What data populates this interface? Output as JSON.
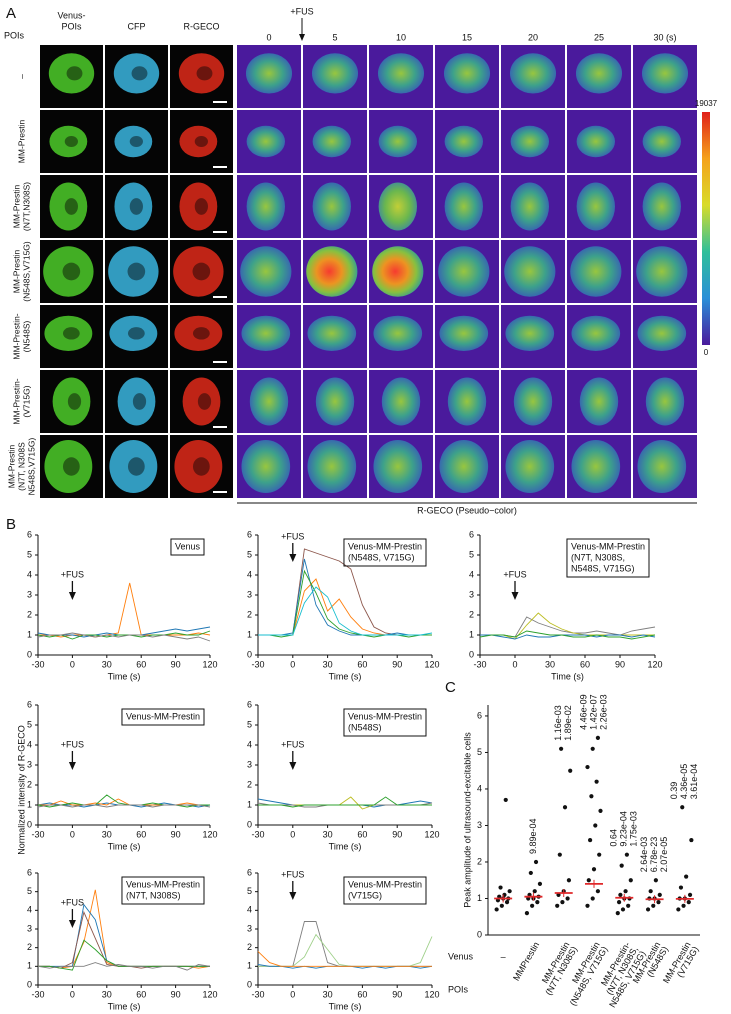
{
  "panel_a": {
    "label": "A",
    "poi_header": "POIs",
    "fus": "+FUS",
    "columns": [
      [
        "Venus-",
        "POIs"
      ],
      [
        "CFP"
      ],
      [
        "R-GECO"
      ],
      [
        "0"
      ],
      [
        "5"
      ],
      [
        "10"
      ],
      [
        "15"
      ],
      [
        "20"
      ],
      [
        "25"
      ],
      [
        "30 (s)"
      ]
    ],
    "rows": [
      [
        "–"
      ],
      [
        "MM-Prestin"
      ],
      [
        "MM-Prestin",
        "(N7T,N308S)"
      ],
      [
        "MM-Prestin",
        "(N548S,V715G)"
      ],
      [
        "MM-Prestin-",
        "(N548S)"
      ],
      [
        "MM-Prestin-",
        "(V715G)"
      ],
      [
        "MM-Prestin",
        "(N7T, N308S",
        "N548S,V715G)"
      ]
    ],
    "colorbar": {
      "max": 19037,
      "min": 0
    },
    "footer": "R-GECO (Pseudo−color)"
  },
  "panel_b": {
    "label": "B",
    "ylabel": "Normalized intensity of R-GECO"
  },
  "panel_c": {
    "label": "C"
  },
  "chart_data": [
    {
      "type": "line",
      "title": [
        "Venus"
      ],
      "annotation": "+FUS",
      "xlabel": "Time (s)",
      "xlim": [
        -30,
        120
      ],
      "xticks": [
        -30,
        0,
        30,
        60,
        90,
        120
      ],
      "ylim": [
        0,
        6
      ],
      "yticks": [
        0,
        1,
        2,
        3,
        4,
        5,
        6
      ],
      "x": [
        -30,
        -20,
        -10,
        0,
        10,
        20,
        30,
        40,
        50,
        60,
        70,
        80,
        90,
        100,
        110,
        120
      ],
      "series": [
        {
          "color": "#ff7f0e",
          "values": [
            1,
            1,
            0.9,
            1,
            1,
            0.9,
            1,
            1.1,
            3.6,
            1,
            1,
            1,
            1,
            1,
            1.1,
            1
          ]
        },
        {
          "color": "#1f77b4",
          "values": [
            1.1,
            1,
            1,
            1,
            0.9,
            1,
            1.1,
            1,
            1,
            1,
            1.1,
            1.2,
            1.3,
            1.2,
            1.3,
            1.4
          ]
        },
        {
          "color": "#2ca02c",
          "values": [
            1,
            0.9,
            1,
            0.8,
            1,
            1,
            0.9,
            1,
            1,
            0.9,
            1,
            1,
            1.1,
            1,
            1,
            1.2
          ]
        },
        {
          "color": "#7f7f7f",
          "values": [
            0.9,
            1,
            1,
            1.1,
            1,
            0.9,
            1,
            0.9,
            1,
            1,
            0.9,
            1,
            0.9,
            0.8,
            0.9,
            0.7
          ]
        }
      ]
    },
    {
      "type": "line",
      "title": [
        "Venus-MM-Prestin",
        "(N548S, V715G)"
      ],
      "annotation": "+FUS",
      "xlabel": "Time (s)",
      "xlim": [
        -30,
        120
      ],
      "xticks": [
        -30,
        0,
        30,
        60,
        90,
        120
      ],
      "ylim": [
        0,
        6
      ],
      "yticks": [
        0,
        1,
        2,
        3,
        4,
        5,
        6
      ],
      "x": [
        -30,
        -20,
        -10,
        0,
        10,
        20,
        30,
        40,
        50,
        60,
        70,
        80,
        90,
        100,
        110,
        120
      ],
      "series": [
        {
          "color": "#8c564b",
          "values": [
            1,
            1,
            1,
            1,
            5.3,
            5.1,
            4.9,
            4.7,
            4.3,
            2.5,
            1.4,
            1.1,
            1,
            1,
            1,
            1
          ]
        },
        {
          "color": "#1f77b4",
          "values": [
            1,
            1,
            1,
            1.1,
            4.8,
            2.5,
            1.5,
            1.2,
            1,
            1,
            1,
            1,
            1.1,
            1,
            1,
            1
          ]
        },
        {
          "color": "#ff7f0e",
          "values": [
            1,
            1,
            1,
            1,
            3.2,
            3.8,
            2.2,
            2.8,
            1.9,
            1.3,
            1.1,
            1,
            1,
            1,
            1,
            1
          ]
        },
        {
          "color": "#2ca02c",
          "values": [
            1,
            1,
            0.9,
            1,
            4.2,
            3.1,
            1.8,
            1.3,
            1.1,
            1,
            0.9,
            1,
            1,
            0.9,
            1,
            1
          ]
        },
        {
          "color": "#17becf",
          "values": [
            1,
            1,
            1,
            1,
            2.6,
            3.4,
            2.9,
            1.6,
            1.2,
            1,
            1,
            1,
            1,
            1,
            1,
            1.1
          ]
        }
      ]
    },
    {
      "type": "line",
      "title": [
        "Venus-MM-Prestin",
        "(N7T, N308S,",
        "N548S, V715G)"
      ],
      "annotation": "+FUS",
      "xlabel": "Time (s)",
      "xlim": [
        -30,
        120
      ],
      "xticks": [
        -30,
        0,
        30,
        60,
        90,
        120
      ],
      "ylim": [
        0,
        6
      ],
      "yticks": [
        0,
        1,
        2,
        3,
        4,
        5,
        6
      ],
      "x": [
        -30,
        -20,
        -10,
        0,
        10,
        20,
        30,
        40,
        50,
        60,
        70,
        80,
        90,
        100,
        110,
        120
      ],
      "series": [
        {
          "color": "#7f7f7f",
          "values": [
            1,
            1,
            1,
            0.9,
            1.9,
            1.6,
            1.4,
            1.2,
            1.1,
            1.1,
            1.2,
            1.1,
            1,
            1.2,
            1.3,
            1.4
          ]
        },
        {
          "color": "#bcbd22",
          "values": [
            1,
            1,
            1,
            0.8,
            1.5,
            2.1,
            1.6,
            1.3,
            1.1,
            1,
            1,
            1,
            1,
            1,
            1,
            1
          ]
        },
        {
          "color": "#1f77b4",
          "values": [
            1,
            1,
            0.9,
            0.8,
            1,
            0.9,
            0.9,
            1,
            1,
            1,
            0.9,
            1,
            1,
            0.9,
            1,
            0.9
          ]
        },
        {
          "color": "#2ca02c",
          "values": [
            0.9,
            1,
            1,
            0.9,
            1.2,
            1.1,
            1,
            1,
            0.9,
            0.9,
            1,
            0.9,
            0.9,
            0.8,
            0.9,
            1
          ]
        }
      ]
    },
    {
      "type": "line",
      "title": [
        "Venus-MM-Prestin"
      ],
      "annotation": "+FUS",
      "xlabel": "Time (s)",
      "xlim": [
        -30,
        120
      ],
      "xticks": [
        -30,
        0,
        30,
        60,
        90,
        120
      ],
      "ylim": [
        0,
        6
      ],
      "yticks": [
        0,
        1,
        2,
        3,
        4,
        5,
        6
      ],
      "x": [
        -30,
        -20,
        -10,
        0,
        10,
        20,
        30,
        40,
        50,
        60,
        70,
        80,
        90,
        100,
        110,
        120
      ],
      "series": [
        {
          "color": "#1f77b4",
          "values": [
            1,
            1.1,
            1,
            1,
            0.9,
            1,
            1.1,
            1,
            1,
            0.9,
            1,
            1.1,
            1,
            1,
            0.9,
            1
          ]
        },
        {
          "color": "#ff7f0e",
          "values": [
            1,
            1,
            1.2,
            1,
            1,
            1.1,
            1,
            1.3,
            1,
            1,
            1,
            1,
            1,
            1.1,
            1,
            1
          ]
        },
        {
          "color": "#2ca02c",
          "values": [
            1,
            0.9,
            1,
            1.1,
            1,
            1,
            1.5,
            1.1,
            1,
            1,
            1.1,
            1,
            1,
            0.9,
            1,
            1
          ]
        },
        {
          "color": "#7f7f7f",
          "values": [
            0.9,
            1,
            1,
            0.9,
            1,
            1,
            0.9,
            1,
            1,
            1,
            0.9,
            1,
            1,
            1,
            1,
            0.9
          ]
        }
      ]
    },
    {
      "type": "line",
      "title": [
        "Venus-MM-Prestin",
        "(N548S)"
      ],
      "annotation": "+FUS",
      "xlabel": "Time (s)",
      "xlim": [
        -30,
        120
      ],
      "xticks": [
        -30,
        0,
        30,
        60,
        90,
        120
      ],
      "ylim": [
        0,
        6
      ],
      "yticks": [
        0,
        1,
        2,
        3,
        4,
        5,
        6
      ],
      "x": [
        -30,
        -20,
        -10,
        0,
        10,
        20,
        30,
        40,
        50,
        60,
        70,
        80,
        90,
        100,
        110,
        120
      ],
      "series": [
        {
          "color": "#1f77b4",
          "values": [
            1.3,
            1.2,
            1.1,
            1,
            1,
            1,
            1,
            1,
            1,
            1,
            0.9,
            1,
            1,
            1.1,
            1.2,
            1.1
          ]
        },
        {
          "color": "#bcbd22",
          "values": [
            1,
            1,
            1,
            1,
            1,
            1,
            1,
            1,
            1.4,
            0.8,
            1,
            1,
            1,
            1,
            1,
            1
          ]
        },
        {
          "color": "#7f7f7f",
          "values": [
            1.1,
            1,
            1,
            1,
            0.9,
            0.9,
            1,
            1,
            1,
            1,
            1,
            1,
            1,
            1,
            1,
            1.1
          ]
        },
        {
          "color": "#2ca02c",
          "values": [
            1,
            1,
            1,
            0.9,
            1,
            1,
            1,
            1,
            1,
            1,
            1,
            1.4,
            1,
            1,
            1,
            1
          ]
        }
      ]
    },
    {
      "type": "line",
      "title": [
        "Venus-MM-Prestin",
        "(N7T, N308S)"
      ],
      "annotation": "+FUS",
      "xlabel": "Time (s)",
      "xlim": [
        -30,
        120
      ],
      "xticks": [
        -30,
        0,
        30,
        60,
        90,
        120
      ],
      "ylim": [
        0,
        6
      ],
      "yticks": [
        0,
        1,
        2,
        3,
        4,
        5,
        6
      ],
      "x": [
        -30,
        -20,
        -10,
        0,
        10,
        20,
        30,
        40,
        50,
        60,
        70,
        80,
        90,
        100,
        110,
        120
      ],
      "series": [
        {
          "color": "#ff7f0e",
          "values": [
            1,
            1,
            0.9,
            1,
            2.3,
            5.1,
            1.2,
            1,
            1,
            1,
            1,
            1,
            1,
            1,
            0.9,
            1
          ]
        },
        {
          "color": "#1f77b4",
          "values": [
            1,
            1,
            1,
            1,
            4.3,
            3.5,
            1.3,
            1,
            1,
            1,
            1,
            1,
            1,
            1,
            1,
            1
          ]
        },
        {
          "color": "#8c564b",
          "values": [
            1,
            1,
            0.9,
            1.2,
            3.9,
            2.5,
            1.1,
            1,
            1,
            0.9,
            1,
            1,
            1,
            1,
            1,
            1
          ]
        },
        {
          "color": "#2ca02c",
          "values": [
            1,
            1,
            0.9,
            0.8,
            2.4,
            1.9,
            1.3,
            1,
            1,
            1,
            1,
            1,
            1,
            1,
            1,
            1
          ]
        },
        {
          "color": "#7f7f7f",
          "values": [
            1,
            0.9,
            1,
            1,
            1,
            1.2,
            1,
            1.1,
            1,
            1,
            0.9,
            1,
            1,
            0.8,
            1.1,
            1
          ]
        }
      ]
    },
    {
      "type": "line",
      "title": [
        "Venus-MM-Prestin",
        "(V715G)"
      ],
      "annotation": "+FUS",
      "xlabel": "Time (s)",
      "xlim": [
        -30,
        120
      ],
      "xticks": [
        -30,
        0,
        30,
        60,
        90,
        120
      ],
      "ylim": [
        0,
        6
      ],
      "yticks": [
        0,
        1,
        2,
        3,
        4,
        5,
        6
      ],
      "x": [
        -30,
        -20,
        -10,
        0,
        10,
        20,
        30,
        40,
        50,
        60,
        70,
        80,
        90,
        100,
        110,
        120
      ],
      "series": [
        {
          "color": "#7f7f7f",
          "values": [
            1,
            1,
            1,
            1,
            3.4,
            3.4,
            1.2,
            1,
            1,
            1,
            1,
            1,
            1,
            1,
            1,
            1
          ]
        },
        {
          "color": "#9fd08a",
          "values": [
            1,
            1,
            1,
            1,
            1.5,
            2.7,
            1.9,
            1.1,
            1,
            1,
            1,
            1,
            1,
            1,
            1.2,
            2.6
          ]
        },
        {
          "color": "#1f77b4",
          "values": [
            1.1,
            1,
            1,
            0.9,
            1,
            0.9,
            1,
            1,
            1,
            0.9,
            1,
            0.9,
            1,
            1,
            0.9,
            1
          ]
        },
        {
          "color": "#ff7f0e",
          "values": [
            1.8,
            1.2,
            1,
            1,
            1,
            1,
            1,
            1,
            1,
            1,
            1,
            1,
            1,
            1,
            1,
            1
          ]
        }
      ]
    },
    {
      "type": "strip",
      "ylabel": "Peak amplitude of ultrasound-excitable cells",
      "ylim": [
        0,
        6.3
      ],
      "yticks": [
        0,
        1,
        2,
        3,
        4,
        5,
        6
      ],
      "row_labels": [
        "Venus",
        "POIs"
      ],
      "categories": [
        [
          "–"
        ],
        [
          "MMPrestin"
        ],
        [
          "MM-Prestin",
          "(N7T, N308S)"
        ],
        [
          "MM-Prestin",
          "(N548S, V715G)"
        ],
        [
          "MM-Prestin-",
          "(N7T, N308S,",
          "N548S, V715G)"
        ],
        [
          "MM-Prestin",
          "(N548S)"
        ],
        [
          "MM-Prestin",
          "(V715G)"
        ]
      ],
      "category_colors": [
        "#111111",
        "#e8a317",
        "#cc1f1f",
        "#111111",
        "#111111",
        "#111111",
        "#111111"
      ],
      "mean_color": "#e0282a",
      "means": [
        1.0,
        1.05,
        1.15,
        1.4,
        1.02,
        0.98,
        0.99
      ],
      "points": [
        [
          0.7,
          0.8,
          0.9,
          0.95,
          1,
          1,
          1.05,
          1.1,
          1.2,
          1.3,
          3.7
        ],
        [
          0.6,
          0.8,
          0.9,
          1,
          1,
          1.05,
          1.1,
          1.2,
          1.4,
          1.7,
          2.0
        ],
        [
          0.8,
          0.9,
          1,
          1.1,
          1.2,
          1.5,
          2.2,
          3.5,
          4.5,
          5.1
        ],
        [
          0.8,
          1,
          1.2,
          1.5,
          1.8,
          2.2,
          2.6,
          3,
          3.4,
          3.8,
          4.2,
          4.6,
          5.1,
          5.4
        ],
        [
          0.6,
          0.7,
          0.8,
          0.9,
          1,
          1,
          1.1,
          1.2,
          1.5,
          1.9,
          2.2
        ],
        [
          0.7,
          0.8,
          0.9,
          1,
          1,
          1.1,
          1.2,
          1.5
        ],
        [
          0.7,
          0.8,
          0.9,
          1,
          1,
          1.1,
          1.3,
          1.6,
          2.6,
          3.5
        ]
      ],
      "p_values": [
        [],
        [
          {
            "label": "9.89e-04",
            "color": "#3a7d2a"
          }
        ],
        [
          {
            "label": "1.16e-03",
            "color": "#3a7d2a"
          },
          {
            "label": "1.89e-02",
            "color": "#e8a317"
          }
        ],
        [
          {
            "label": "4.46e-09",
            "color": "#3a7d2a"
          },
          {
            "label": "1.42e-07",
            "color": "#e8a317"
          },
          {
            "label": "2.26e-03",
            "color": "#cc1f1f"
          }
        ],
        [
          {
            "label": "0.64",
            "color": "#3a7d2a"
          },
          {
            "label": "9.23e-04",
            "color": "#e8a317"
          },
          {
            "label": "1.75e-03",
            "color": "#cc1f1f"
          }
        ],
        [
          {
            "label": "2.64e-03",
            "color": "#3a7d2a"
          },
          {
            "label": "6.78e-23",
            "color": "#e8a317"
          },
          {
            "label": "2.07e-05",
            "color": "#cc1f1f"
          }
        ],
        [
          {
            "label": "0.39",
            "color": "#3a7d2a"
          },
          {
            "label": "4.36e-05",
            "color": "#e8a317"
          },
          {
            "label": "3.61e-04",
            "color": "#cc1f1f"
          }
        ]
      ]
    }
  ]
}
